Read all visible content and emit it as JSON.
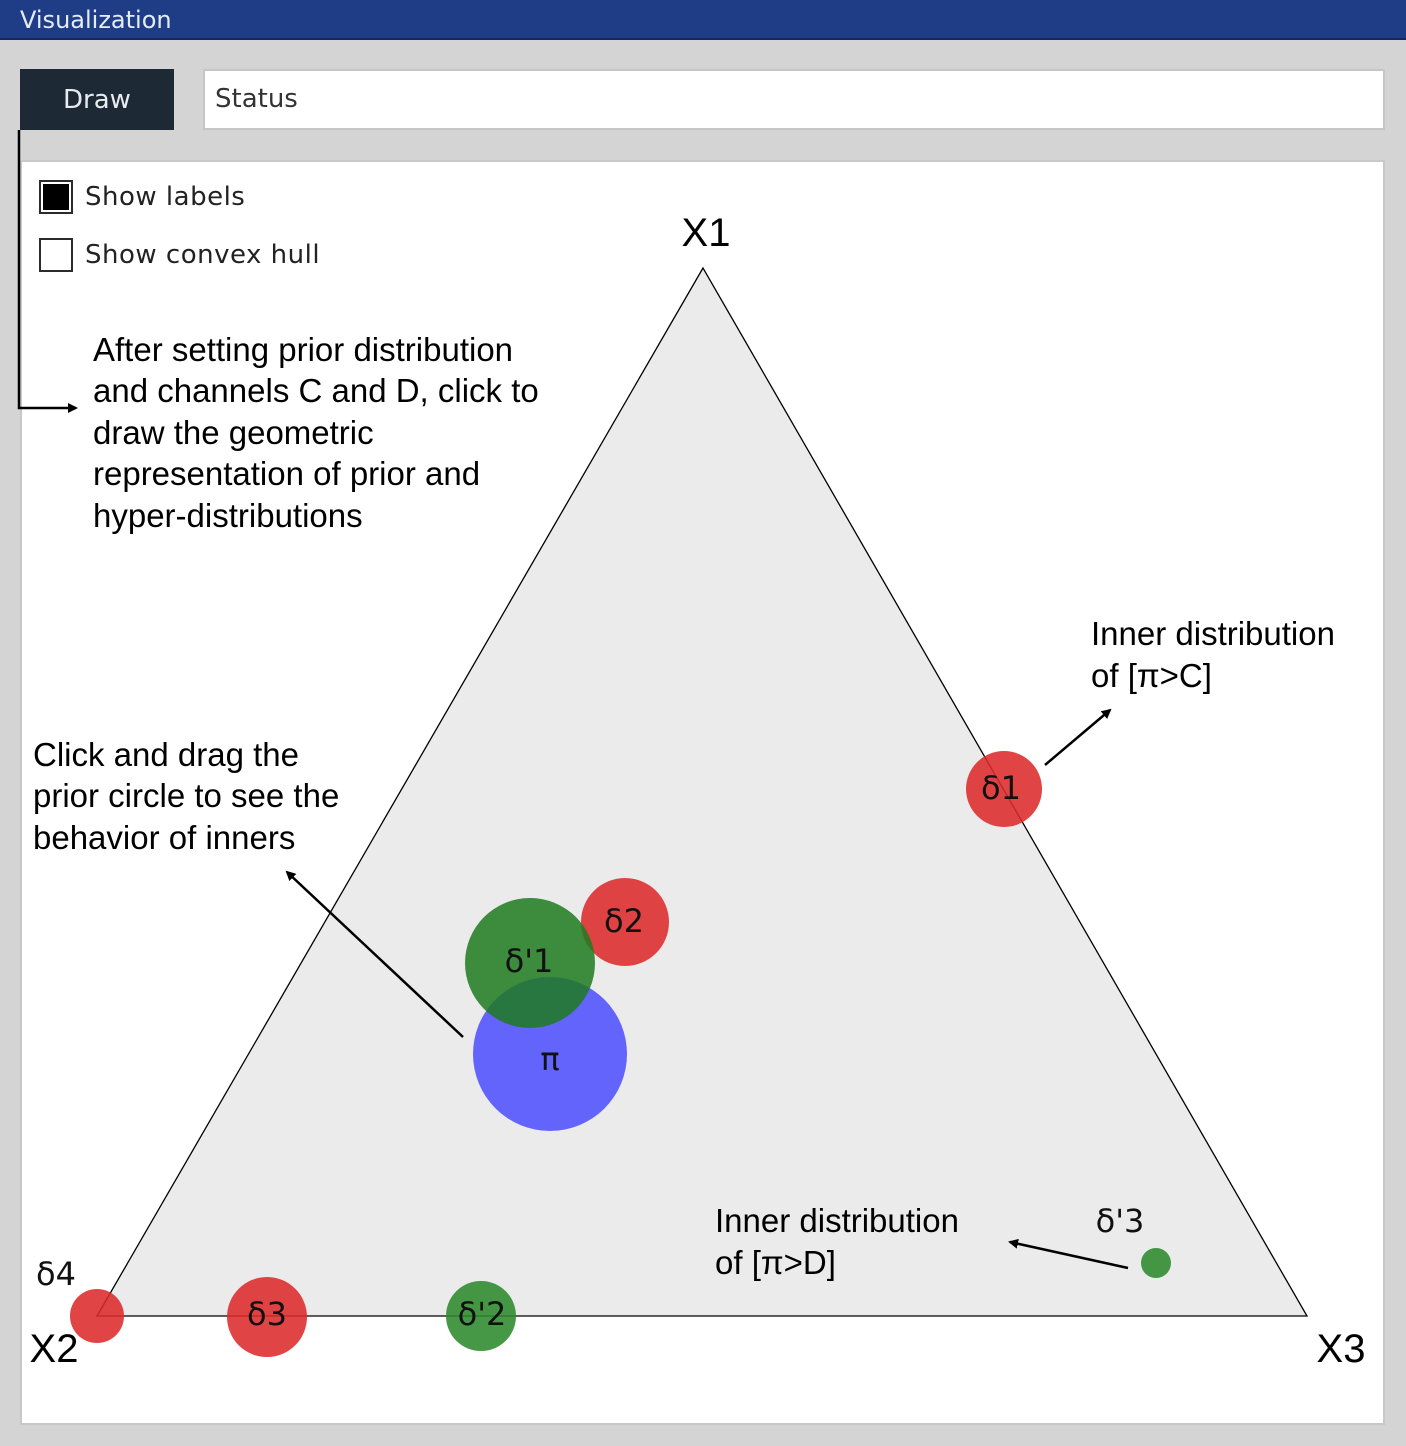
{
  "window": {
    "title": "Visualization"
  },
  "toolbar": {
    "draw_label": "Draw",
    "status_text": "Status"
  },
  "options": {
    "show_labels": {
      "label": "Show labels",
      "checked": true
    },
    "show_convex_hull": {
      "label": "Show convex hull",
      "checked": false
    }
  },
  "simplex": {
    "vertices": {
      "top": "X1",
      "left": "X2",
      "right": "X3"
    },
    "fill": "#ebebeb"
  },
  "circles": [
    {
      "id": "delta1",
      "label": "δ1",
      "color": "#dd2a2a"
    },
    {
      "id": "delta2",
      "label": "δ2",
      "color": "#dd2a2a"
    },
    {
      "id": "delta3",
      "label": "δ3",
      "color": "#dd2a2a"
    },
    {
      "id": "delta4",
      "label": "δ4",
      "color": "#dd2a2a"
    },
    {
      "id": "delta_p1",
      "label": "δ'1",
      "color": "#2c8a2c"
    },
    {
      "id": "delta_p2",
      "label": "δ'2",
      "color": "#2c8a2c"
    },
    {
      "id": "delta_p3",
      "label": "δ'3",
      "color": "#2c8a2c"
    },
    {
      "id": "pi",
      "label": "π",
      "color": "#4a4cff"
    }
  ],
  "annotations": {
    "draw_hint": [
      "After setting prior distribution",
      "and channels C and D, click to",
      "draw the geometric",
      "representation of prior and",
      "hyper-distributions"
    ],
    "drag_hint": [
      "Click and drag the",
      "prior circle to see the",
      "behavior of inners"
    ],
    "inner_c": [
      "Inner distribution",
      "of [π>C]"
    ],
    "inner_d": [
      "Inner distribution",
      "of [π>D]"
    ]
  }
}
